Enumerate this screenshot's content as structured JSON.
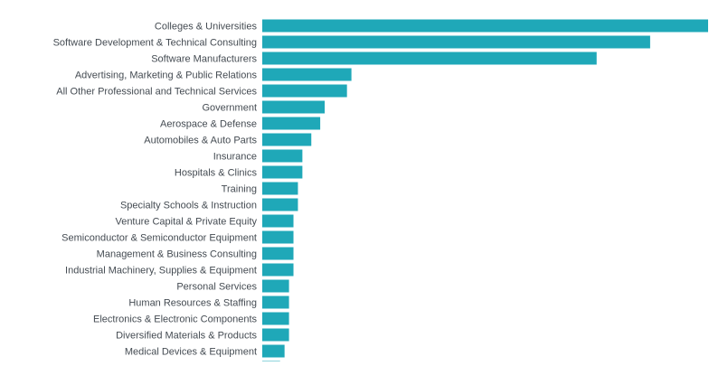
{
  "chart_data": {
    "type": "bar",
    "orientation": "horizontal",
    "title": "",
    "xlabel": "",
    "ylabel": "",
    "grid": false,
    "categories": [
      "Colleges & Universities",
      "Software Development & Technical Consulting",
      "Software Manufacturers",
      "Advertising, Marketing & Public Relations",
      "All Other Professional and Technical Services",
      "Government",
      "Aerospace & Defense",
      "Automobiles & Auto Parts",
      "Insurance",
      "Hospitals & Clinics",
      "Training",
      "Specialty Schools & Instruction",
      "Venture Capital & Private Equity",
      "Semiconductor & Semiconductor Equipment",
      "Management & Business Consulting",
      "Industrial Machinery, Supplies & Equipment",
      "Personal Services",
      "Human Resources & Staffing",
      "Electronics & Electronic Components",
      "Diversified Materials & Products",
      "Medical Devices & Equipment"
    ],
    "values": [
      100,
      87,
      75,
      20,
      19,
      14,
      13,
      11,
      9,
      9,
      8,
      8,
      7,
      7,
      7,
      7,
      6,
      6,
      6,
      6,
      5
    ],
    "xlim": [
      0,
      100
    ],
    "colors": {
      "bar": "#1fa8b8",
      "label": "#444b52"
    }
  }
}
